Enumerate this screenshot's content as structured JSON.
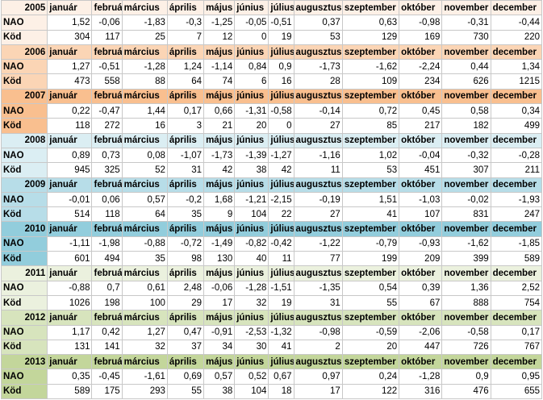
{
  "blocks": [
    {
      "year": "2005",
      "color": "#fdf0e6",
      "months": [
        "január",
        "február",
        "március",
        "április",
        "május",
        "június",
        "július",
        "augusztus",
        "szeptember",
        "október",
        "november",
        "december"
      ],
      "rows": [
        {
          "label": "NAO",
          "values": [
            "1,52",
            "-0,06",
            "-1,83",
            "-0,3",
            "-1,25",
            "-0,05",
            "-0,51",
            "0,37",
            "0,63",
            "-0,98",
            "-0,31",
            "-0,44"
          ]
        },
        {
          "label": "Köd",
          "values": [
            "304",
            "117",
            "25",
            "7",
            "12",
            "0",
            "19",
            "53",
            "129",
            "169",
            "730",
            "220"
          ]
        }
      ]
    },
    {
      "year": "2006",
      "color": "#fbd5b5",
      "months": [
        "január",
        "február",
        "március",
        "április",
        "május",
        "június",
        "július",
        "augusztus",
        "szeptember",
        "október",
        "november",
        "december"
      ],
      "rows": [
        {
          "label": "NAO",
          "values": [
            "1,27",
            "-0,51",
            "-1,28",
            "1,24",
            "-1,14",
            "0,84",
            "0,9",
            "-1,73",
            "-1,62",
            "-2,24",
            "0,44",
            "1,34"
          ]
        },
        {
          "label": "Köd",
          "values": [
            "473",
            "558",
            "88",
            "64",
            "74",
            "6",
            "16",
            "28",
            "109",
            "234",
            "626",
            "1215"
          ]
        }
      ]
    },
    {
      "year": "2007",
      "color": "#f9bf8f",
      "months": [
        "január",
        "február",
        "március",
        "április",
        "május",
        "június",
        "július",
        "augusztus",
        "szeptember",
        "október",
        "november",
        "december"
      ],
      "rows": [
        {
          "label": "NAO",
          "values": [
            "0,22",
            "-0,47",
            "1,44",
            "0,17",
            "0,66",
            "-1,31",
            "-0,58",
            "-0,14",
            "0,72",
            "0,45",
            "0,58",
            "0,34"
          ]
        },
        {
          "label": "Köd",
          "values": [
            "118",
            "272",
            "16",
            "3",
            "21",
            "20",
            "0",
            "27",
            "85",
            "217",
            "182",
            "499"
          ]
        }
      ]
    },
    {
      "year": "2008",
      "color": "#dbeef3",
      "months": [
        "január",
        "február",
        "március",
        "április",
        "május",
        "június",
        "július",
        "augusztus",
        "szeptember",
        "október",
        "november",
        "december"
      ],
      "rows": [
        {
          "label": "NAO",
          "values": [
            "0,89",
            "0,73",
            "0,08",
            "-1,07",
            "-1,73",
            "-1,39",
            "-1,27",
            "-1,16",
            "1,02",
            "-0,04",
            "-0,32",
            "-0,28"
          ]
        },
        {
          "label": "Köd",
          "values": [
            "945",
            "325",
            "52",
            "31",
            "42",
            "38",
            "42",
            "11",
            "53",
            "451",
            "307",
            "211"
          ]
        }
      ]
    },
    {
      "year": "2009",
      "color": "#b7dde8",
      "months": [
        "január",
        "február",
        "március",
        "április",
        "május",
        "június",
        "július",
        "augusztus",
        "szeptember",
        "október",
        "november",
        "december"
      ],
      "rows": [
        {
          "label": "NAO",
          "values": [
            "-0,01",
            "0,06",
            "0,57",
            "-0,2",
            "1,68",
            "-1,21",
            "-2,15",
            "-0,19",
            "1,51",
            "-1,03",
            "-0,02",
            "-1,93"
          ]
        },
        {
          "label": "Köd",
          "values": [
            "514",
            "118",
            "64",
            "35",
            "9",
            "104",
            "22",
            "27",
            "41",
            "107",
            "831",
            "247"
          ]
        }
      ]
    },
    {
      "year": "2010",
      "color": "#92cddc",
      "months": [
        "január",
        "február",
        "március",
        "április",
        "május",
        "június",
        "július",
        "augusztus",
        "szeptember",
        "október",
        "november",
        "december"
      ],
      "rows": [
        {
          "label": "NAO",
          "values": [
            "-1,11",
            "-1,98",
            "-0,88",
            "-0,72",
            "-1,49",
            "-0,82",
            "-0,42",
            "-1,22",
            "-0,79",
            "-0,93",
            "-1,62",
            "-1,85"
          ]
        },
        {
          "label": "Köd",
          "values": [
            "601",
            "494",
            "35",
            "98",
            "130",
            "40",
            "11",
            "77",
            "199",
            "209",
            "399",
            "589"
          ]
        }
      ]
    },
    {
      "year": "2011",
      "color": "#ebf1de",
      "months": [
        "január",
        "február",
        "március",
        "április",
        "május",
        "június",
        "július",
        "augusztus",
        "szeptember",
        "október",
        "november",
        "december"
      ],
      "rows": [
        {
          "label": "NAO",
          "values": [
            "-0,88",
            "0,7",
            "0,61",
            "2,48",
            "-0,06",
            "-1,28",
            "-1,51",
            "-1,35",
            "0,54",
            "0,39",
            "1,36",
            "2,52"
          ]
        },
        {
          "label": "Köd",
          "values": [
            "1026",
            "198",
            "100",
            "29",
            "17",
            "32",
            "19",
            "31",
            "55",
            "67",
            "888",
            "754"
          ]
        }
      ]
    },
    {
      "year": "2012",
      "color": "#d7e4bd",
      "months": [
        "január",
        "február",
        "március",
        "április",
        "május",
        "június",
        "július",
        "augusztus",
        "szeptember",
        "október",
        "november",
        "december"
      ],
      "rows": [
        {
          "label": "NAO",
          "values": [
            "1,17",
            "0,42",
            "1,27",
            "0,47",
            "-0,91",
            "-2,53",
            "-1,32",
            "-0,98",
            "-0,59",
            "-2,06",
            "-0,58",
            "0,17"
          ]
        },
        {
          "label": "Köd",
          "values": [
            "131",
            "141",
            "32",
            "37",
            "34",
            "30",
            "41",
            "2",
            "20",
            "447",
            "726",
            "767"
          ]
        }
      ]
    },
    {
      "year": "2013",
      "color": "#c3d69b",
      "months": [
        "január",
        "február",
        "március",
        "április",
        "május",
        "június",
        "július",
        "augusztus",
        "szeptember",
        "október",
        "november",
        "december"
      ],
      "rows": [
        {
          "label": "NAO",
          "values": [
            "0,35",
            "-0,45",
            "-1,61",
            "0,69",
            "0,57",
            "0,52",
            "0,67",
            "0,97",
            "0,24",
            "-1,28",
            "0,9",
            "0,95"
          ]
        },
        {
          "label": "Köd",
          "values": [
            "589",
            "175",
            "293",
            "55",
            "38",
            "104",
            "18",
            "17",
            "122",
            "316",
            "476",
            "655"
          ]
        }
      ]
    }
  ]
}
